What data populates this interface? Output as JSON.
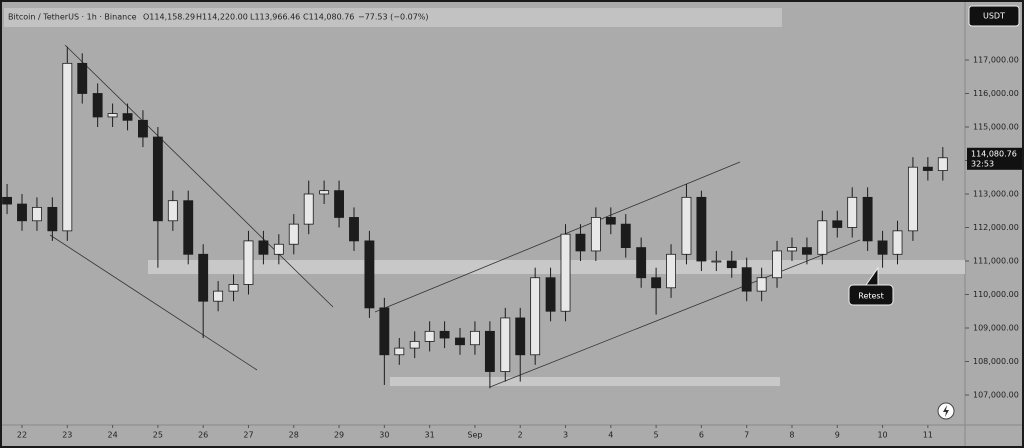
{
  "chart_data": {
    "type": "candlestick",
    "title": "Bitcoin / TetherUS · 1h · Binance",
    "ohlc_labels": [
      "O114,158.29",
      "H114,220.00",
      "L113,966.46",
      "C114,080.76"
    ],
    "change_label": "−77.53 (−0.07%)",
    "currency": "USDT",
    "annotation": "Retest",
    "price_label": {
      "value": 114080.76,
      "label": "114,080.76"
    },
    "countdown": "32:53",
    "color": "#1c1c1c",
    "x": [
      -0.33,
      0,
      0.33,
      0.67,
      1,
      1.33,
      1.67,
      2,
      2.33,
      2.67,
      3,
      3.33,
      3.67,
      4,
      4.33,
      4.67,
      5,
      5.33,
      5.67,
      6,
      6.33,
      6.67,
      7,
      7.33,
      7.67,
      8,
      8.33,
      8.67,
      9,
      9.33,
      9.67,
      10,
      10.33,
      10.67,
      11,
      11.33,
      11.67,
      12,
      12.33,
      12.67,
      13,
      13.33,
      13.67,
      14,
      14.33,
      14.67,
      15,
      15.33,
      15.67,
      16,
      16.33,
      16.67,
      17,
      17.33,
      17.67,
      18,
      18.33,
      18.67,
      19,
      19.33,
      19.67,
      20,
      20.33
    ],
    "open": [
      112900,
      112700,
      112200,
      112600,
      111900,
      116900,
      116000,
      115300,
      115400,
      115200,
      114700,
      112200,
      112800,
      111200,
      109800,
      110100,
      110300,
      111600,
      111200,
      111500,
      112100,
      113000,
      113100,
      112300,
      111600,
      109600,
      108200,
      108400,
      108600,
      108900,
      108700,
      108500,
      108900,
      107700,
      109300,
      108200,
      110500,
      109500,
      111800,
      111300,
      112300,
      112100,
      111400,
      110500,
      110200,
      111200,
      112900,
      111000,
      111000,
      110800,
      110100,
      110500,
      111300,
      111400,
      111200,
      112200,
      112000,
      112900,
      111600,
      111200,
      111900,
      113800,
      113700
    ],
    "high": [
      113300,
      113000,
      112900,
      112900,
      117400,
      117200,
      116300,
      115700,
      115700,
      115500,
      115000,
      113100,
      113100,
      111500,
      110400,
      110600,
      111900,
      111900,
      111800,
      112400,
      113400,
      113400,
      113400,
      112600,
      111900,
      109900,
      108700,
      108900,
      109200,
      109200,
      109000,
      109200,
      109200,
      109600,
      109600,
      110800,
      110800,
      112100,
      112100,
      112600,
      112600,
      112400,
      111700,
      110800,
      111500,
      113300,
      113100,
      111300,
      111300,
      111100,
      110800,
      111600,
      111700,
      111700,
      112500,
      112500,
      113200,
      113200,
      111900,
      112200,
      114100,
      114100,
      114400
    ],
    "low": [
      112400,
      111900,
      111900,
      111600,
      111600,
      115700,
      115000,
      115000,
      114900,
      114400,
      110800,
      111900,
      110900,
      108700,
      109500,
      109800,
      110000,
      110900,
      110900,
      111200,
      111800,
      112700,
      112000,
      111300,
      109300,
      107300,
      107900,
      108100,
      108300,
      108400,
      108200,
      108200,
      107200,
      107400,
      107400,
      107900,
      109200,
      109200,
      111000,
      111000,
      111800,
      111100,
      110200,
      109400,
      109900,
      110900,
      110700,
      110700,
      110500,
      109800,
      109800,
      110200,
      111000,
      110900,
      110900,
      111700,
      111700,
      111300,
      110800,
      110900,
      111600,
      113400,
      113400
    ],
    "close": [
      112700,
      112200,
      112600,
      111900,
      116900,
      116000,
      115300,
      115400,
      115200,
      114700,
      112200,
      112800,
      111200,
      109800,
      110100,
      110300,
      111600,
      111200,
      111500,
      112100,
      113000,
      113100,
      112300,
      111600,
      109600,
      108200,
      108400,
      108600,
      108900,
      108700,
      108500,
      108900,
      107700,
      109300,
      108200,
      110500,
      109500,
      111800,
      111300,
      112300,
      112100,
      111400,
      110500,
      110200,
      111200,
      112900,
      111000,
      111000,
      110800,
      110100,
      110500,
      111300,
      111400,
      111200,
      112200,
      112000,
      112900,
      111600,
      111200,
      111900,
      113800,
      113700,
      114080.76
    ],
    "xlim": [
      -0.486,
      20.82
    ],
    "ylim": [
      106104,
      118791
    ],
    "yticks": [
      {
        "value": 107000,
        "label": "107,000.00"
      },
      {
        "value": 108000,
        "label": "108,000.00"
      },
      {
        "value": 109000,
        "label": "109,000.00"
      },
      {
        "value": 110000,
        "label": "110,000.00"
      },
      {
        "value": 111000,
        "label": "111,000.00"
      },
      {
        "value": 112000,
        "label": "112,000.00"
      },
      {
        "value": 113000,
        "label": "113,000.00"
      },
      {
        "value": 114000,
        "label": "114,000.00"
      },
      {
        "value": 115000,
        "label": "115,000.00"
      },
      {
        "value": 116000,
        "label": "116,000.00"
      },
      {
        "value": 117000,
        "label": "117,000.00"
      }
    ],
    "xticks": [
      {
        "value": 0,
        "label": "22"
      },
      {
        "value": 1,
        "label": "23"
      },
      {
        "value": 2,
        "label": "24"
      },
      {
        "value": 3,
        "label": "25"
      },
      {
        "value": 4,
        "label": "26"
      },
      {
        "value": 5,
        "label": "27"
      },
      {
        "value": 6,
        "label": "28"
      },
      {
        "value": 7,
        "label": "29"
      },
      {
        "value": 8,
        "label": "30"
      },
      {
        "value": 9,
        "label": "31"
      },
      {
        "value": 10,
        "label": "Sep"
      },
      {
        "value": 11,
        "label": "2"
      },
      {
        "value": 12,
        "label": "3"
      },
      {
        "value": 13,
        "label": "4"
      },
      {
        "value": 14,
        "label": "5"
      },
      {
        "value": 15,
        "label": "6"
      },
      {
        "value": 16,
        "label": "7"
      },
      {
        "value": 17,
        "label": "8"
      },
      {
        "value": 18,
        "label": "9"
      },
      {
        "value": 19,
        "label": "10"
      },
      {
        "value": 20,
        "label": "11"
      }
    ],
    "grid": false
  }
}
